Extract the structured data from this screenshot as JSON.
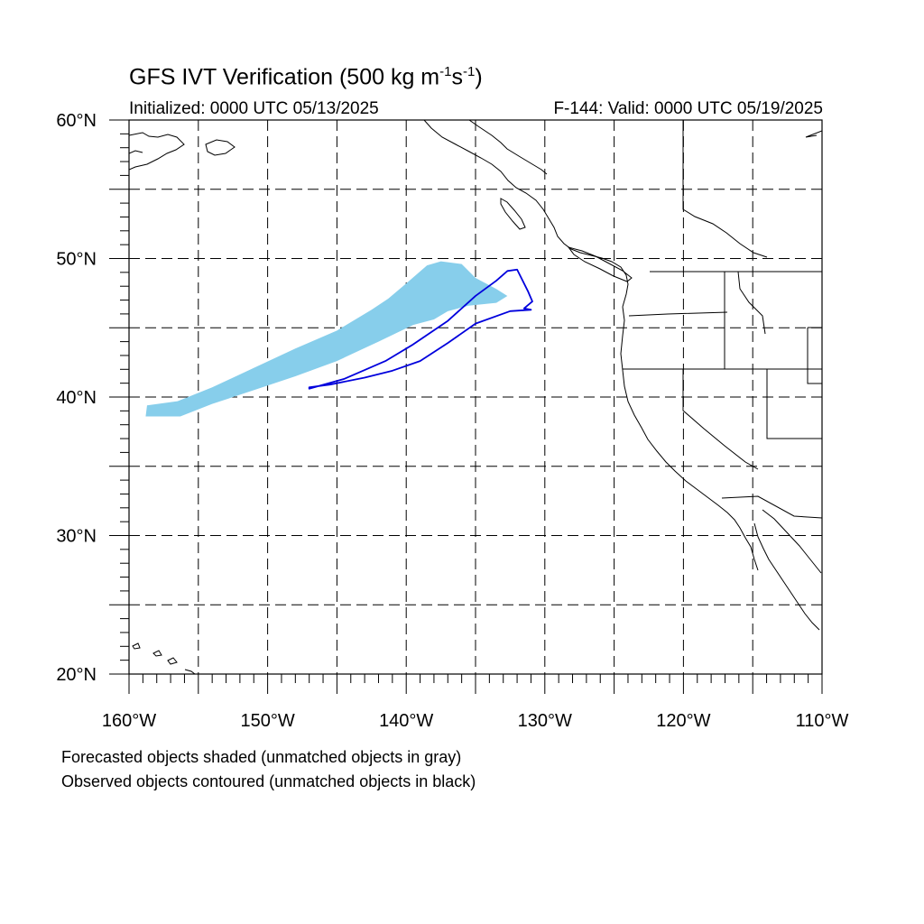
{
  "title": {
    "prefix": "GFS IVT Verification (500 kg m",
    "exp1": "-1",
    "mid": "s",
    "exp2": "-1",
    "suffix": ")"
  },
  "subtitle_left": "Initialized: 0000 UTC 05/13/2025",
  "subtitle_right": "F-144: Valid: 0000 UTC 05/19/2025",
  "notes": [
    "Forecasted objects shaded (unmatched objects in gray)",
    "Observed objects contoured (unmatched objects in black)"
  ],
  "map": {
    "lon_range": [
      -160,
      -110
    ],
    "lat_range": [
      20,
      60
    ],
    "lat_labels": [
      "60°N",
      "50°N",
      "40°N",
      "30°N",
      "20°N"
    ],
    "lon_labels": [
      "160°W",
      "150°W",
      "140°W",
      "130°W",
      "120°W",
      "110°W"
    ],
    "gridlines": "dashed every 5 degrees",
    "colors": {
      "forecast_fill": "#87CEEB",
      "observed_contour": "#0000DD",
      "coastline": "#000000",
      "grid": "#000000"
    },
    "forecast_object": [
      [
        -158.8,
        38.6
      ],
      [
        -158.7,
        39.4
      ],
      [
        -156.5,
        39.7
      ],
      [
        -154,
        40.7
      ],
      [
        -151,
        42.1
      ],
      [
        -148,
        43.5
      ],
      [
        -145,
        44.8
      ],
      [
        -142.5,
        46.3
      ],
      [
        -141.3,
        47.1
      ],
      [
        -140,
        48.2
      ],
      [
        -138.5,
        49.5
      ],
      [
        -137.5,
        49.8
      ],
      [
        -136,
        49.6
      ],
      [
        -135,
        48.6
      ],
      [
        -133.5,
        47.8
      ],
      [
        -132.7,
        47.3
      ],
      [
        -133.5,
        46.8
      ],
      [
        -135.5,
        46.6
      ],
      [
        -137,
        46.2
      ],
      [
        -138,
        45.6
      ],
      [
        -139.5,
        45.2
      ],
      [
        -142,
        44
      ],
      [
        -145,
        42.6
      ],
      [
        -148,
        41.5
      ],
      [
        -151,
        40.5
      ],
      [
        -154,
        39.5
      ],
      [
        -156.3,
        38.6
      ],
      [
        -157.5,
        38.6
      ]
    ],
    "observed_object": [
      [
        -147,
        40.6
      ],
      [
        -144.5,
        41.3
      ],
      [
        -141.5,
        42.6
      ],
      [
        -139.5,
        43.8
      ],
      [
        -137,
        45.5
      ],
      [
        -135,
        47.3
      ],
      [
        -133.5,
        48.4
      ],
      [
        -132.7,
        49.1
      ],
      [
        -132,
        49.2
      ],
      [
        -131.2,
        47.6
      ],
      [
        -130.9,
        46.9
      ],
      [
        -131.5,
        46.4
      ],
      [
        -131,
        46.3
      ],
      [
        -132.5,
        46.2
      ],
      [
        -135,
        45.3
      ],
      [
        -137,
        43.9
      ],
      [
        -139,
        42.6
      ],
      [
        -141,
        41.9
      ],
      [
        -143,
        41.4
      ],
      [
        -145.5,
        40.9
      ],
      [
        -147,
        40.7
      ]
    ]
  }
}
